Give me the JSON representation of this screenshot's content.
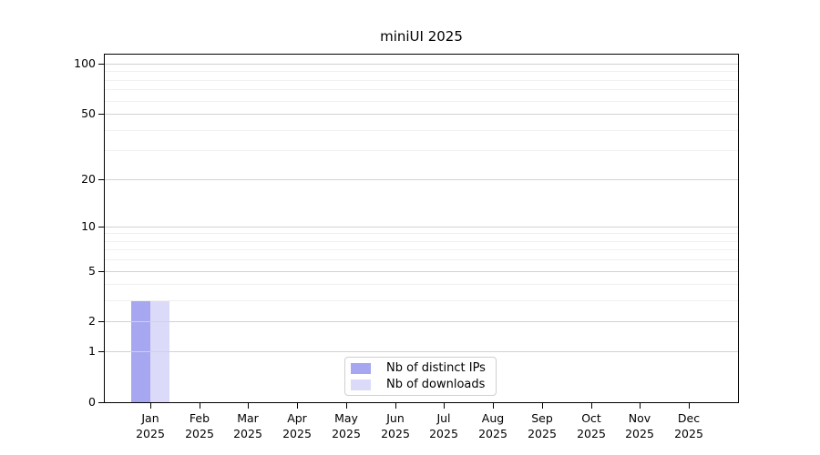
{
  "chart_data": {
    "type": "bar",
    "title": "miniUI 2025",
    "categories": [
      "Jan 2025",
      "Feb 2025",
      "Mar 2025",
      "Apr 2025",
      "May 2025",
      "Jun 2025",
      "Jul 2025",
      "Aug 2025",
      "Sep 2025",
      "Oct 2025",
      "Nov 2025",
      "Dec 2025"
    ],
    "series": [
      {
        "name": "Nb of distinct IPs",
        "color": "#a6a6f1",
        "values": [
          3,
          0,
          0,
          0,
          0,
          0,
          0,
          0,
          0,
          0,
          0,
          0
        ]
      },
      {
        "name": "Nb of downloads",
        "color": "#dbdbf9",
        "values": [
          3,
          0,
          0,
          0,
          0,
          0,
          0,
          0,
          0,
          0,
          0,
          0
        ]
      }
    ],
    "y_axis": {
      "scale": "log1p",
      "tick_values": [
        0,
        1,
        2,
        5,
        10,
        20,
        50,
        100
      ],
      "minor_gridline_values": [
        3,
        4,
        6,
        7,
        8,
        9,
        30,
        40,
        60,
        70,
        80,
        90
      ],
      "range_top": 100
    },
    "grid": true,
    "legend_position": "bottom-center"
  },
  "colors": {
    "grid_major": "#d2d2d2",
    "grid_minor": "#f0f0f0",
    "axis": "#000000",
    "background": "#ffffff",
    "legend_border": "#cfcfcf"
  }
}
